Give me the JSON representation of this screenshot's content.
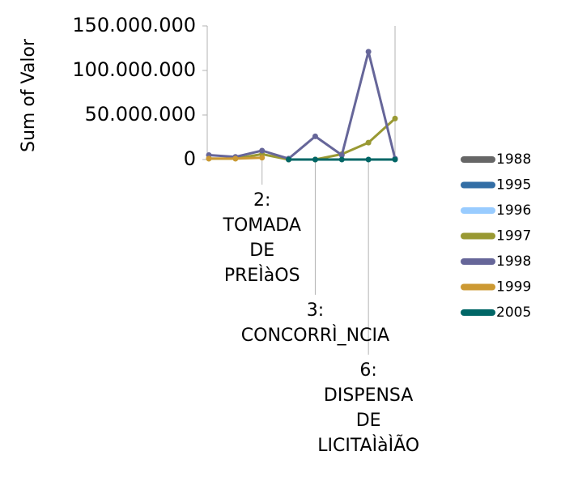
{
  "chart_data": {
    "type": "line",
    "ylabel": "Sum of Valor",
    "categories": [
      null,
      null,
      "2:\nTOMADA\nDE\nPREÌàOS",
      null,
      "3:\nCONCORRÌ_NCIA",
      null,
      "6:\nDISPENSA\nDE\nLICITAÌàÌÃO",
      null
    ],
    "ylim": [
      0,
      150000000
    ],
    "yticks": [
      0,
      {
        "value": 50000000,
        "label": "50.000.000"
      },
      {
        "value": 100000000,
        "label": "100.000.000"
      },
      {
        "value": 150000000,
        "label": "150.000.000"
      }
    ],
    "legend": "right",
    "series": [
      {
        "name": "1988",
        "color": "#666666",
        "values": [
          null,
          null,
          null,
          null,
          null,
          null,
          null,
          null
        ]
      },
      {
        "name": "1995",
        "color": "#336ea5",
        "values": [
          null,
          null,
          null,
          null,
          null,
          null,
          null,
          null
        ]
      },
      {
        "name": "1996",
        "color": "#99ccff",
        "values": [
          null,
          null,
          null,
          null,
          null,
          null,
          null,
          null
        ]
      },
      {
        "name": "1997",
        "color": "#999933",
        "values": [
          1000000,
          1000000,
          6000000,
          0,
          0,
          6000000,
          19000000,
          46000000
        ]
      },
      {
        "name": "1998",
        "color": "#666699",
        "values": [
          5000000,
          3000000,
          10000000,
          1000000,
          26000000,
          5000000,
          121000000,
          1000000
        ]
      },
      {
        "name": "1999",
        "color": "#cc9933",
        "values": [
          1000000,
          1000000,
          2000000,
          null,
          null,
          null,
          null,
          null
        ]
      },
      {
        "name": "2005",
        "color": "#006666",
        "values": [
          null,
          null,
          null,
          0,
          0,
          0,
          0,
          0
        ]
      }
    ]
  }
}
